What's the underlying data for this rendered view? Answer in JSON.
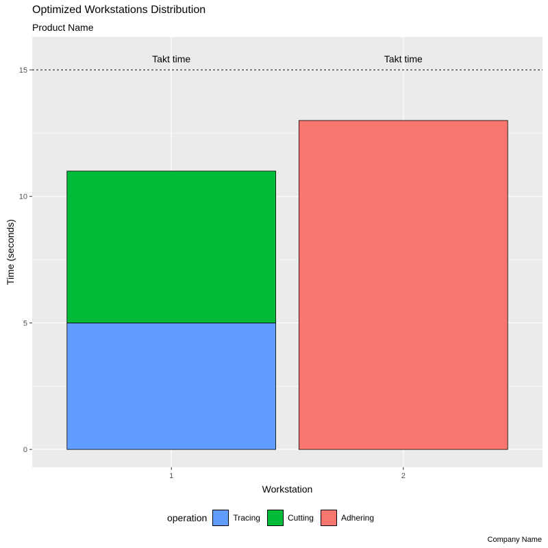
{
  "chart_data": {
    "type": "bar",
    "stacked": true,
    "title": "Optimized Workstations Distribution",
    "subtitle": "Product Name",
    "caption": "Company Name",
    "xlabel": "Workstation",
    "ylabel": "Time (seconds)",
    "categories": [
      "1",
      "2"
    ],
    "series": [
      {
        "name": "Tracing",
        "values": [
          5,
          0
        ],
        "color": "#619CFF"
      },
      {
        "name": "Cutting",
        "values": [
          6,
          0
        ],
        "color": "#00BA38"
      },
      {
        "name": "Adhering",
        "values": [
          0,
          13
        ],
        "color": "#F8766D"
      }
    ],
    "reference_line": {
      "y": 15,
      "label": "Takt time",
      "style": "dashed"
    },
    "ylim": [
      -0.7,
      16.3
    ],
    "yticks": [
      0,
      5,
      10,
      15
    ],
    "legend": {
      "title": "operation",
      "position": "bottom"
    },
    "grid": true,
    "panel_background": "#EBEBEB"
  }
}
